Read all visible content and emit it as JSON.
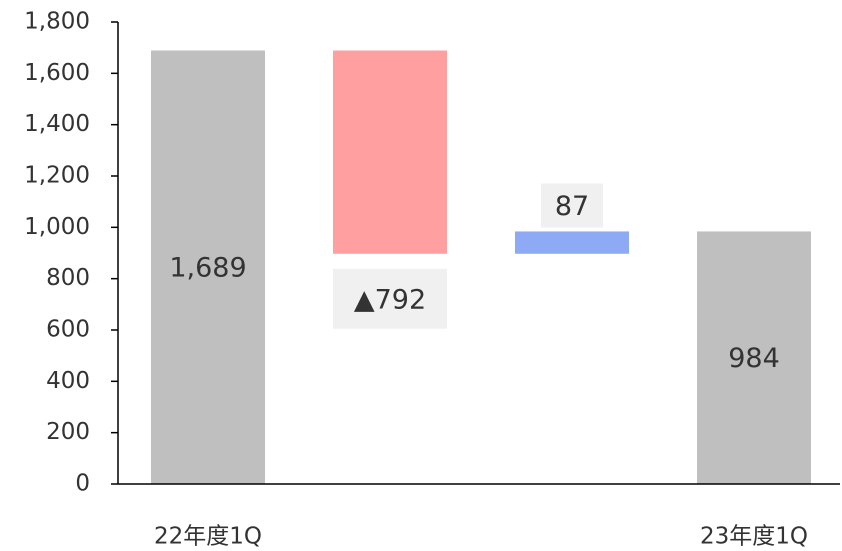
{
  "chart_data": {
    "type": "waterfall",
    "categories": [
      "22年度1Q",
      null,
      null,
      "23年度1Q"
    ],
    "values": [
      1689,
      -792,
      87,
      984
    ],
    "value_labels": [
      "1,689",
      "▲792",
      "87",
      "984"
    ],
    "measures": [
      "total",
      "relative",
      "relative",
      "total"
    ],
    "colors": [
      "#bfbfbf",
      "#ff9f9f",
      "#8faaf5",
      "#bfbfbf"
    ],
    "ylim": [
      0,
      1800
    ],
    "yticks": [
      0,
      200,
      400,
      600,
      800,
      {
        "value": 1000,
        "label": "1,000"
      },
      {
        "value": 1200,
        "label": "1,200"
      },
      {
        "value": 1400,
        "label": "1,400"
      },
      {
        "value": 1600,
        "label": "1,600"
      },
      {
        "value": 1800,
        "label": "1,800"
      }
    ]
  }
}
